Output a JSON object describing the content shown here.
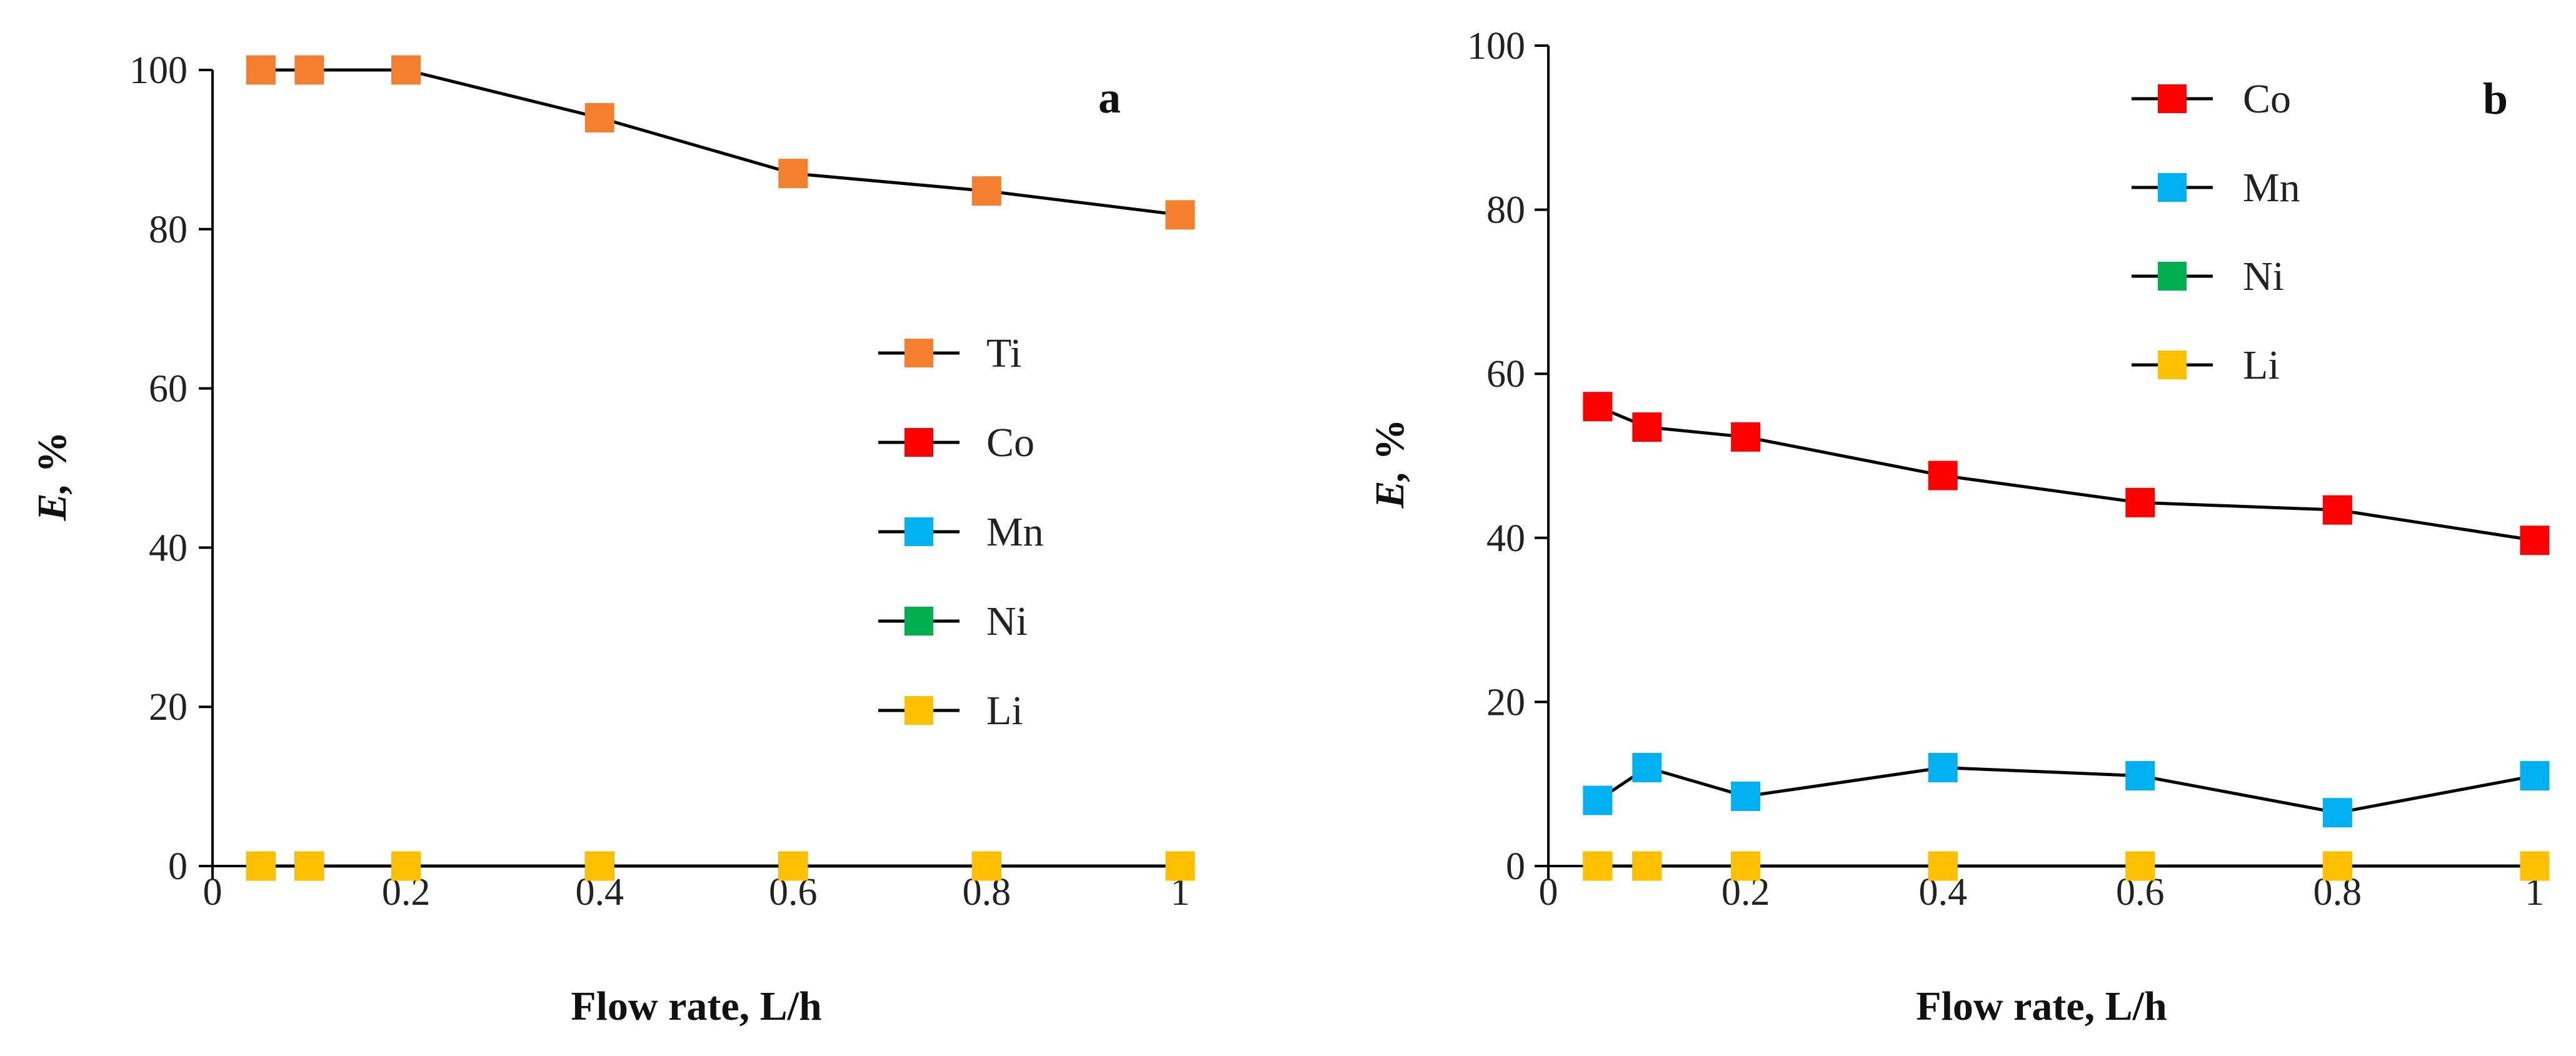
{
  "chart_data": [
    {
      "id": "a",
      "type": "line",
      "panel_label": "a",
      "xlabel": "Flow rate, L/h",
      "ylabel_var": "E,",
      "ylabel_unit": " %",
      "xlim": [
        0,
        1
      ],
      "ylim": [
        0,
        100
      ],
      "xticks": [
        0,
        0.2,
        0.4,
        0.6,
        0.8,
        1
      ],
      "xtick_labels": [
        "0",
        "0.2",
        "0.4",
        "0.6",
        "0.8",
        "1"
      ],
      "yticks": [
        0,
        20,
        40,
        60,
        80,
        100
      ],
      "ytick_labels": [
        "0",
        "20",
        "40",
        "60",
        "80",
        "100"
      ],
      "legend_position": "center-right",
      "draw_order": [
        "Ti",
        "Ni",
        "Co",
        "Mn",
        "Li"
      ],
      "series": [
        {
          "name": "Ti",
          "color": "#f4802f",
          "x": [
            0.05,
            0.1,
            0.2,
            0.4,
            0.6,
            0.8,
            1.0
          ],
          "y": [
            100,
            100,
            100,
            94,
            87,
            84.8,
            81.8
          ]
        },
        {
          "name": "Co",
          "color": "#ff0000",
          "x": [
            0.05,
            0.1,
            0.2,
            0.4,
            0.6,
            0.8,
            1.0
          ],
          "y": [
            0,
            0,
            0,
            0,
            0,
            0,
            0
          ]
        },
        {
          "name": "Mn",
          "color": "#00b0f0",
          "x": [
            0.05,
            0.1,
            0.2,
            0.4,
            0.6,
            0.8,
            1.0
          ],
          "y": [
            0,
            0,
            0,
            0,
            0,
            0,
            0
          ]
        },
        {
          "name": "Ni",
          "color": "#00b050",
          "x": [
            0.05,
            0.1,
            0.2,
            0.4,
            0.6,
            0.8,
            1.0
          ],
          "y": [
            0,
            0,
            0,
            0,
            0,
            0,
            0
          ]
        },
        {
          "name": "Li",
          "color": "#ffc000",
          "x": [
            0.05,
            0.1,
            0.2,
            0.4,
            0.6,
            0.8,
            1.0
          ],
          "y": [
            0,
            0,
            0,
            0,
            0,
            0,
            0
          ]
        }
      ]
    },
    {
      "id": "b",
      "type": "line",
      "panel_label": "b",
      "xlabel": "Flow rate, L/h",
      "ylabel_var": "E,",
      "ylabel_unit": " %",
      "xlim": [
        0,
        1
      ],
      "ylim": [
        0,
        100
      ],
      "xticks": [
        0,
        0.2,
        0.4,
        0.6,
        0.8,
        1
      ],
      "xtick_labels": [
        "0",
        "0.2",
        "0.4",
        "0.6",
        "0.8",
        "1"
      ],
      "yticks": [
        0,
        20,
        40,
        60,
        80,
        100
      ],
      "ytick_labels": [
        "0",
        "20",
        "40",
        "60",
        "80",
        "100"
      ],
      "legend_position": "top-right",
      "draw_order": [
        "Co",
        "Mn",
        "Ni",
        "Li"
      ],
      "series": [
        {
          "name": "Co",
          "color": "#ff0000",
          "x": [
            0.05,
            0.1,
            0.2,
            0.4,
            0.6,
            0.8,
            1.0
          ],
          "y": [
            56,
            53.5,
            52.3,
            47.6,
            44.3,
            43.4,
            39.7
          ]
        },
        {
          "name": "Mn",
          "color": "#00b0f0",
          "x": [
            0.05,
            0.1,
            0.2,
            0.4,
            0.6,
            0.8,
            1.0
          ],
          "y": [
            8,
            12,
            8.5,
            12,
            11,
            6.5,
            11
          ]
        },
        {
          "name": "Ni",
          "color": "#00b050",
          "x": [
            0.05,
            0.1,
            0.2,
            0.4,
            0.6,
            0.8,
            1.0
          ],
          "y": [
            0,
            0,
            0,
            0,
            0,
            0,
            0
          ]
        },
        {
          "name": "Li",
          "color": "#ffc000",
          "x": [
            0.05,
            0.1,
            0.2,
            0.4,
            0.6,
            0.8,
            1.0
          ],
          "y": [
            0,
            0,
            0,
            0,
            0,
            0,
            0
          ]
        }
      ]
    }
  ]
}
